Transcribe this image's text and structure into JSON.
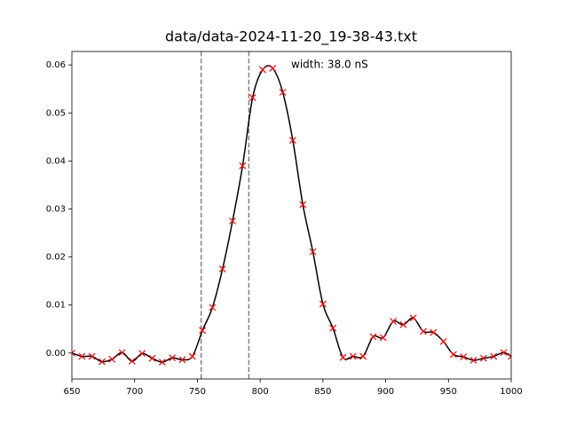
{
  "chart_data": {
    "type": "line",
    "title": "data/data-2024-11-20_19-38-43.txt",
    "annotation": "width: 38.0 nS",
    "x": [
      650,
      658,
      666,
      674,
      682,
      690,
      698,
      706,
      714,
      722,
      730,
      738,
      746,
      754,
      762,
      770,
      778,
      786,
      794,
      802,
      810,
      818,
      826,
      834,
      842,
      850,
      858,
      866,
      874,
      882,
      890,
      898,
      906,
      914,
      922,
      930,
      938,
      946,
      954,
      962,
      970,
      978,
      986,
      994,
      1000
    ],
    "series": [
      {
        "color": "#000000",
        "marker_color": "#ff0000",
        "values": [
          0,
          -0.0007,
          -0.0007,
          -0.0018,
          -0.0013,
          0.0001,
          -0.0017,
          -0.0001,
          -0.0011,
          -0.0019,
          -0.001,
          -0.0014,
          -0.0007,
          0.0047,
          0.0095,
          0.0175,
          0.0275,
          0.039,
          0.0532,
          0.059,
          0.0593,
          0.0543,
          0.0443,
          0.0309,
          0.0211,
          0.0102,
          0.0052,
          -0.0009,
          -0.0007,
          -0.0007,
          0.0034,
          0.0032,
          0.0066,
          0.0059,
          0.0073,
          0.0045,
          0.0043,
          0.0024,
          -0.0003,
          -0.0008,
          -0.0015,
          -0.0011,
          -0.0007,
          0.0001,
          -0.0007
        ]
      }
    ],
    "vlines": [
      753,
      791
    ],
    "vline_color": "#808080",
    "xlim": [
      650,
      1000
    ],
    "xticks": [
      650,
      700,
      750,
      800,
      850,
      900,
      950,
      1000
    ],
    "ylim": [
      -0.0054,
      0.0628
    ],
    "yticks": [
      {
        "value": 0,
        "label": "0.00"
      },
      0.01,
      0.02,
      0.03,
      0.04,
      0.05,
      0.06
    ]
  }
}
